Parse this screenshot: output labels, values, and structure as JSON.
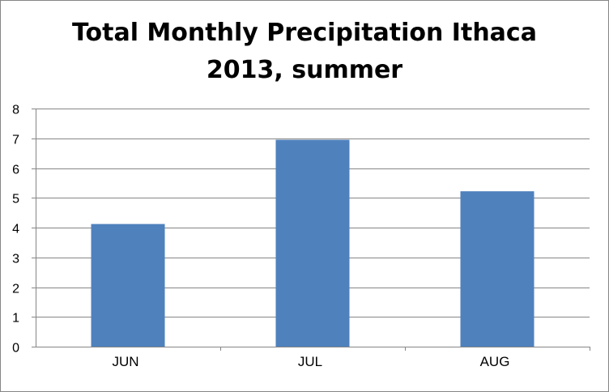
{
  "chart_data": {
    "type": "bar",
    "title_lines": [
      "Total Monthly Precipitation Ithaca",
      "2013, summer"
    ],
    "categories": [
      "JUN",
      "JUL",
      "AUG"
    ],
    "values": [
      4.12,
      6.95,
      5.22
    ],
    "ylim": [
      0,
      8
    ],
    "yticks": [
      "0",
      "1",
      "2",
      "3",
      "4",
      "5",
      "6",
      "7",
      "8"
    ],
    "grid": true,
    "legend": "none",
    "bar_color": "#4F81BD"
  }
}
